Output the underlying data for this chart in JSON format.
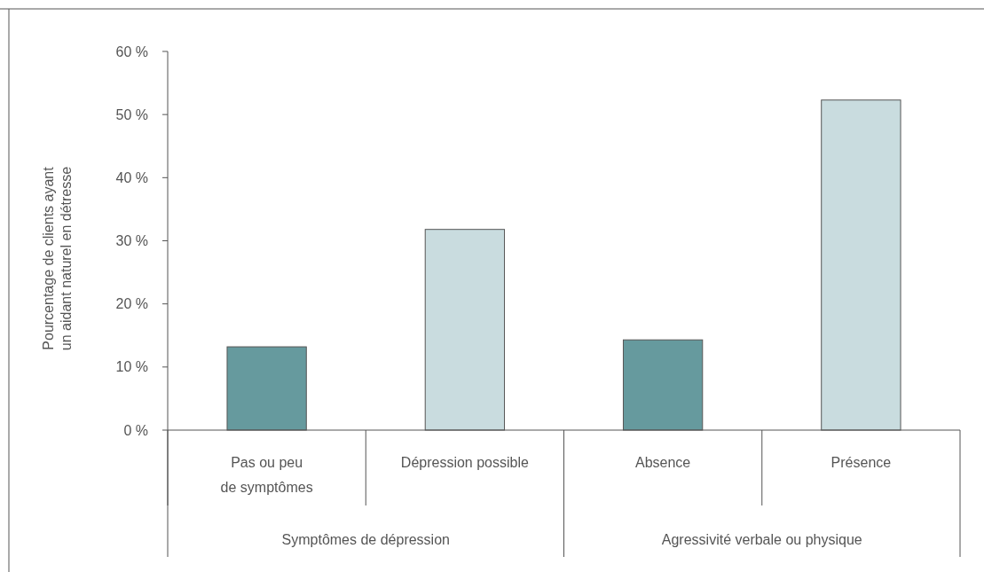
{
  "chart_data": {
    "type": "bar",
    "ylabel": "Pourcentage de clients ayant\nun aidant naturel en détresse",
    "categories": [
      "Pas ou peu\nde symptômes",
      "Dépression possible",
      "Absence",
      "Présence"
    ],
    "values": [
      13.2,
      31.8,
      14.3,
      52.3
    ],
    "colors": [
      "#669a9e",
      "#c9dcdf",
      "#669a9e",
      "#c9dcdf"
    ],
    "ylim": [
      0,
      60
    ],
    "yticks": [
      {
        "value": 0,
        "label": "0 %"
      },
      {
        "value": 10,
        "label": "10 %"
      },
      {
        "value": 20,
        "label": "20 %"
      },
      {
        "value": 30,
        "label": "30 %"
      },
      {
        "value": 40,
        "label": "40 %"
      },
      {
        "value": 50,
        "label": "50 %"
      },
      {
        "value": 60,
        "label": "60 %"
      }
    ],
    "annotations": [
      "Symptômes de dépression",
      "Agressivité verbale ou physique"
    ]
  }
}
